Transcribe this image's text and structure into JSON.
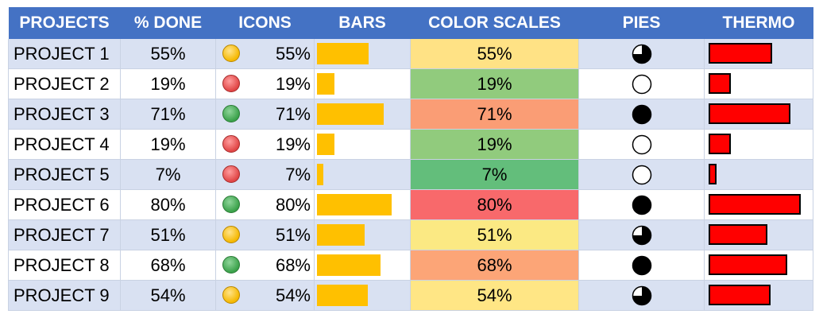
{
  "headers": [
    "PROJECTS",
    "% DONE",
    "ICONS",
    "BARS",
    "COLOR SCALES",
    "PIES",
    "THERMO"
  ],
  "rows": [
    {
      "project": "PROJECT 1",
      "done": "55%",
      "value": 0.55,
      "icon": "yellow-circle-icon",
      "icon_color": "yellow",
      "scale_color": "#ffe285",
      "pie": "three-quarter-pie-icon",
      "pie_fill": 0.75
    },
    {
      "project": "PROJECT 2",
      "done": "19%",
      "value": 0.19,
      "icon": "red-circle-icon",
      "icon_color": "red",
      "scale_color": "#91cb7d",
      "pie": "empty-pie-icon",
      "pie_fill": 0
    },
    {
      "project": "PROJECT 3",
      "done": "71%",
      "value": 0.71,
      "icon": "green-circle-icon",
      "icon_color": "green",
      "scale_color": "#fa9d75",
      "pie": "full-pie-icon",
      "pie_fill": 1
    },
    {
      "project": "PROJECT 4",
      "done": "19%",
      "value": 0.19,
      "icon": "red-circle-icon",
      "icon_color": "red",
      "scale_color": "#91cb7d",
      "pie": "empty-pie-icon",
      "pie_fill": 0
    },
    {
      "project": "PROJECT 5",
      "done": "7%",
      "value": 0.07,
      "icon": "red-circle-icon",
      "icon_color": "red",
      "scale_color": "#63be7b",
      "pie": "empty-pie-icon",
      "pie_fill": 0
    },
    {
      "project": "PROJECT 6",
      "done": "80%",
      "value": 0.8,
      "icon": "green-circle-icon",
      "icon_color": "green",
      "scale_color": "#f8696b",
      "pie": "full-pie-icon",
      "pie_fill": 1
    },
    {
      "project": "PROJECT 7",
      "done": "51%",
      "value": 0.51,
      "icon": "yellow-circle-icon",
      "icon_color": "yellow",
      "scale_color": "#fbe983",
      "pie": "three-quarter-pie-icon",
      "pie_fill": 0.75
    },
    {
      "project": "PROJECT 8",
      "done": "68%",
      "value": 0.68,
      "icon": "green-circle-icon",
      "icon_color": "green",
      "scale_color": "#fca577",
      "pie": "full-pie-icon",
      "pie_fill": 1
    },
    {
      "project": "PROJECT 9",
      "done": "54%",
      "value": 0.54,
      "icon": "yellow-circle-icon",
      "icon_color": "yellow",
      "scale_color": "#ffe685",
      "pie": "three-quarter-pie-icon",
      "pie_fill": 0.75
    }
  ],
  "colors": {
    "header_bg": "#4472c4",
    "band_bg": "#d9e1f2",
    "bar": "#ffc000",
    "thermo": "#ff0000"
  }
}
